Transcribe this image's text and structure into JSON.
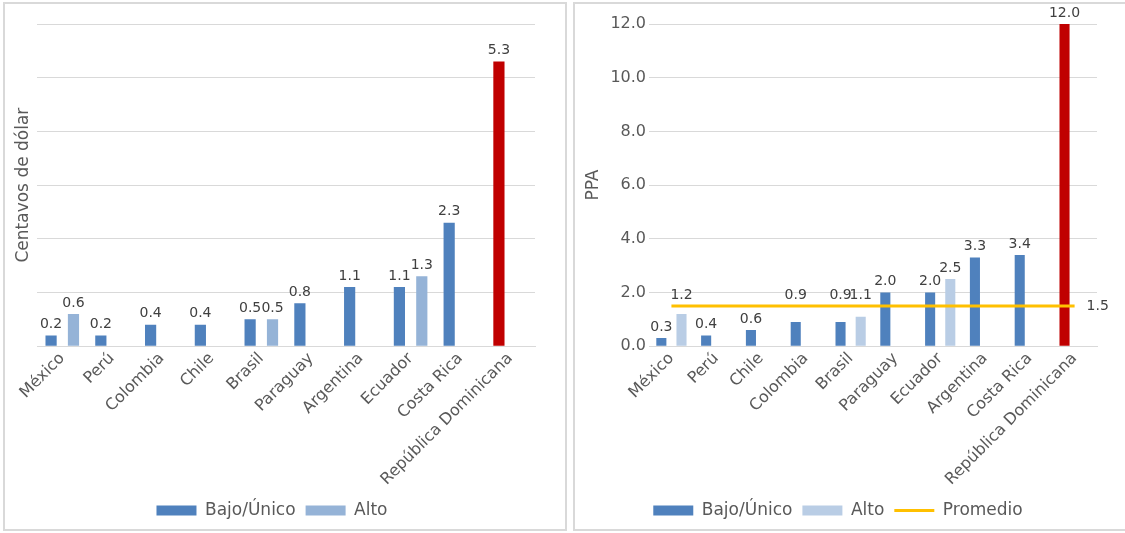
{
  "chart_data": [
    {
      "type": "bar",
      "ylabel": "Centavos de dólar",
      "categories": [
        "México",
        "Perú",
        "Colombia",
        "Chile",
        "Brasil",
        "Paraguay",
        "Argentina",
        "Ecuador",
        "Costa Rica",
        "República Dominicana"
      ],
      "series": [
        {
          "name": "Bajo/Único",
          "color": "#4f81bd",
          "colors": [
            "#4f81bd",
            "#4f81bd",
            "#4f81bd",
            "#4f81bd",
            "#4f81bd",
            "#4f81bd",
            "#4f81bd",
            "#4f81bd",
            "#4f81bd",
            "#c00000"
          ],
          "values": [
            0.2,
            0.2,
            0.4,
            0.4,
            0.5,
            0.8,
            1.1,
            1.1,
            2.3,
            5.3
          ],
          "value_labels": [
            "0.2",
            "0.2",
            "0.4",
            "0.4",
            "0.5",
            "0.8",
            "1.1",
            "1.1",
            "2.3",
            "5.3"
          ]
        },
        {
          "name": "Alto",
          "color": "#95b3d7",
          "values": [
            0.6,
            null,
            null,
            null,
            0.5,
            null,
            null,
            1.3,
            null,
            null
          ],
          "value_labels": [
            "0.6",
            null,
            null,
            null,
            "0.5",
            null,
            null,
            "1.3",
            null,
            null
          ]
        }
      ],
      "ylim": [
        0,
        6
      ],
      "yticks": [
        {
          "value": 0,
          "label": null
        },
        {
          "value": 1,
          "label": null
        },
        {
          "value": 2,
          "label": null
        },
        {
          "value": 3,
          "label": null
        },
        {
          "value": 4,
          "label": null
        },
        {
          "value": 5,
          "label": null
        },
        {
          "value": 6,
          "label": null
        }
      ],
      "grid": "y",
      "legend": "bottom",
      "tick_labels": "x"
    },
    {
      "type": "bar",
      "ylabel": "PPA",
      "categories": [
        "México",
        "Perú",
        "Chile",
        "Colombia",
        "Brasil",
        "Paraguay",
        "Ecuador",
        "Argentina",
        "Costa Rica",
        "República Dominicana"
      ],
      "series": [
        {
          "name": "Bajo/Único",
          "color": "#4f81bd",
          "colors": [
            "#4f81bd",
            "#4f81bd",
            "#4f81bd",
            "#4f81bd",
            "#4f81bd",
            "#4f81bd",
            "#4f81bd",
            "#4f81bd",
            "#4f81bd",
            "#c00000"
          ],
          "values": [
            0.3,
            0.4,
            0.6,
            0.9,
            0.9,
            2.0,
            2.0,
            3.3,
            3.4,
            12.0
          ],
          "value_labels": [
            "0.3",
            "0.4",
            "0.6",
            "0.9",
            "0.9",
            "2.0",
            "2.0",
            "3.3",
            "3.4",
            "12.0"
          ]
        },
        {
          "name": "Alto",
          "color": "#b9cde5",
          "values": [
            1.2,
            null,
            null,
            null,
            1.1,
            null,
            2.5,
            null,
            null,
            null
          ],
          "value_labels": [
            "1.2",
            null,
            null,
            null,
            "1.1",
            null,
            "2.5",
            null,
            null,
            null
          ]
        },
        {
          "name": "Promedio",
          "type": "line",
          "color": "#ffc000",
          "values": [
            1.5,
            1.5,
            1.5,
            1.5,
            1.5,
            1.5,
            1.5,
            1.5,
            1.5,
            1.5
          ],
          "value_labels": [
            null,
            null,
            null,
            null,
            null,
            null,
            null,
            null,
            null,
            "1.5"
          ]
        }
      ],
      "ylim": [
        0,
        12
      ],
      "yticks": [
        {
          "value": 0,
          "label": "0.0"
        },
        {
          "value": 2,
          "label": "2.0"
        },
        {
          "value": 4,
          "label": "4.0"
        },
        {
          "value": 6,
          "label": "6.0"
        },
        {
          "value": 8,
          "label": "8.0"
        },
        {
          "value": 10,
          "label": "10.0"
        },
        {
          "value": 12,
          "label": "12.0"
        }
      ],
      "grid": "y",
      "legend": "bottom",
      "marker": "none"
    }
  ]
}
